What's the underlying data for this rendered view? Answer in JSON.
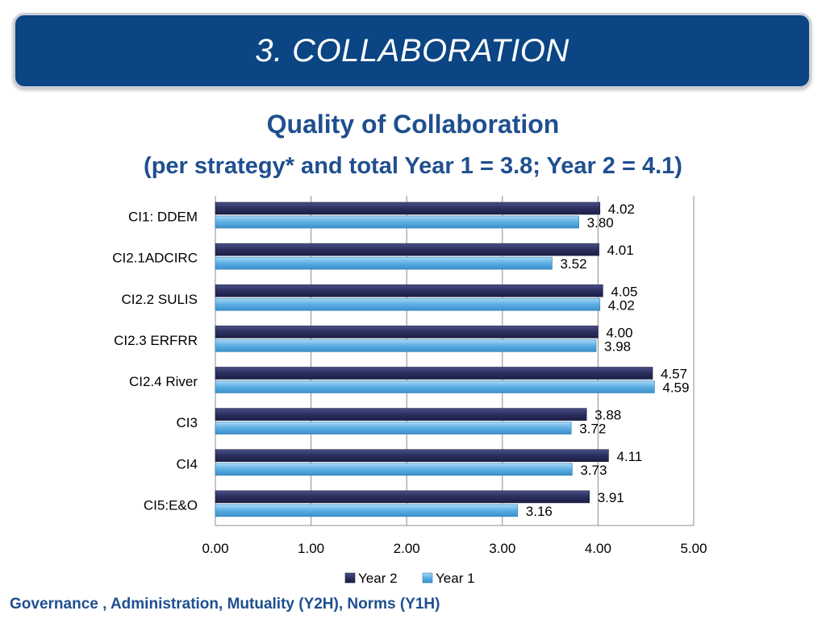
{
  "slide": {
    "title": "3. COLLABORATION",
    "footer": "Governance , Administration, Mutuality (Y2H), Norms (Y1H)"
  },
  "chart_data": {
    "type": "bar",
    "orientation": "horizontal",
    "title": "Quality of Collaboration",
    "subtitle": "(per strategy* and total Year 1 = 3.8; Year 2 = 4.1)",
    "categories": [
      "CI1: DDEM",
      "CI2.1ADCIRC",
      "CI2.2 SULIS",
      "CI2.3 ERFRR",
      "CI2.4 River",
      "CI3",
      "CI4",
      "CI5:E&O"
    ],
    "series": [
      {
        "name": "Year 2",
        "color": "#2b2f5e",
        "values": [
          4.02,
          4.01,
          4.05,
          4.0,
          4.57,
          3.88,
          4.11,
          3.91
        ],
        "labels": [
          "4.02",
          "4.01",
          "4.05",
          "4.00",
          "4.57",
          "3.88",
          "4.11",
          "3.91"
        ]
      },
      {
        "name": "Year 1",
        "color": "#5aaee3",
        "values": [
          3.8,
          3.52,
          4.02,
          3.98,
          4.59,
          3.72,
          3.73,
          3.16
        ],
        "labels": [
          "3.80",
          "3.52",
          "4.02",
          "3.98",
          "4.59",
          "3.72",
          "3.73",
          "3.16"
        ]
      }
    ],
    "xlim": [
      0,
      5
    ],
    "xticks": [
      "0.00",
      "1.00",
      "2.00",
      "3.00",
      "4.00",
      "5.00"
    ],
    "grid": true,
    "legend_position": "bottom"
  }
}
